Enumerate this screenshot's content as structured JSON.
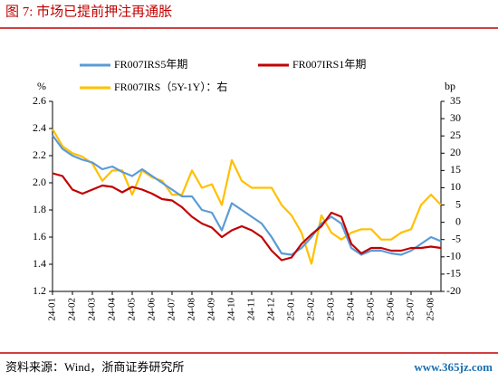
{
  "chart_data": {
    "type": "line",
    "title": "图 7:   市场已提前押注再通胀",
    "y_label": "%",
    "y2_label": "bp",
    "source": "资料来源：Wind，浙商证券研究所",
    "watermark": "www.365jz.com",
    "categories": [
      "24-01",
      null,
      "24-02",
      null,
      "24-03",
      null,
      "24-04",
      null,
      "24-05",
      null,
      "24-06",
      null,
      "24-07",
      null,
      "24-08",
      null,
      "24-09",
      null,
      "24-10",
      null,
      "24-11",
      null,
      "24-12",
      null,
      "25-01",
      null,
      "25-02",
      null,
      "25-03",
      null,
      "25-04",
      null,
      "25-05",
      null,
      "25-06",
      null,
      "25-07",
      null,
      "25-08",
      null
    ],
    "ylim": [
      1.2,
      2.6
    ],
    "yticks": [
      1.2,
      1.4,
      1.6,
      1.8,
      {
        "value": 2,
        "label": "2.0"
      },
      2.2,
      2.4,
      2.6
    ],
    "y2lim": [
      -20,
      35
    ],
    "y2ticks": [
      -20,
      -15,
      -10,
      -5,
      0,
      5,
      10,
      15,
      20,
      25,
      30,
      35
    ],
    "series": [
      {
        "name": "FR007IRS5年期",
        "color": "#5b9bd5",
        "values": [
          2.35,
          2.25,
          2.2,
          2.17,
          2.15,
          2.1,
          2.12,
          2.08,
          2.05,
          2.1,
          2.05,
          2.0,
          1.95,
          1.9,
          1.9,
          1.8,
          1.78,
          1.65,
          1.85,
          1.8,
          1.75,
          1.7,
          1.6,
          1.48,
          1.47,
          1.52,
          1.6,
          1.7,
          1.75,
          1.7,
          1.52,
          1.47,
          1.5,
          1.5,
          1.48,
          1.47,
          1.5,
          1.55,
          1.6,
          1.57
        ]
      },
      {
        "name": "FR007IRS1年期",
        "color": "#c00000",
        "values": [
          2.07,
          2.05,
          1.95,
          1.92,
          1.95,
          1.98,
          1.97,
          1.93,
          1.97,
          1.95,
          1.92,
          1.88,
          1.87,
          1.82,
          1.75,
          1.7,
          1.67,
          1.6,
          1.65,
          1.68,
          1.65,
          1.6,
          1.5,
          1.43,
          1.45,
          1.55,
          1.62,
          1.68,
          1.78,
          1.75,
          1.55,
          1.48,
          1.52,
          1.52,
          1.5,
          1.5,
          1.52,
          1.52,
          1.53,
          1.52
        ]
      },
      {
        "name": "FR007IRS（5Y-1Y）：右",
        "color": "#ffc000",
        "axis": "y2",
        "values": [
          27,
          22,
          20,
          19,
          17,
          12,
          15,
          15,
          8,
          15,
          13,
          12,
          8,
          8,
          15,
          10,
          11,
          5,
          18,
          12,
          10,
          10,
          10,
          5,
          2,
          -3,
          -12,
          2,
          -3,
          -5,
          -3,
          -2,
          -2,
          -5,
          -5,
          -3,
          -2,
          5,
          8,
          5
        ]
      }
    ]
  }
}
